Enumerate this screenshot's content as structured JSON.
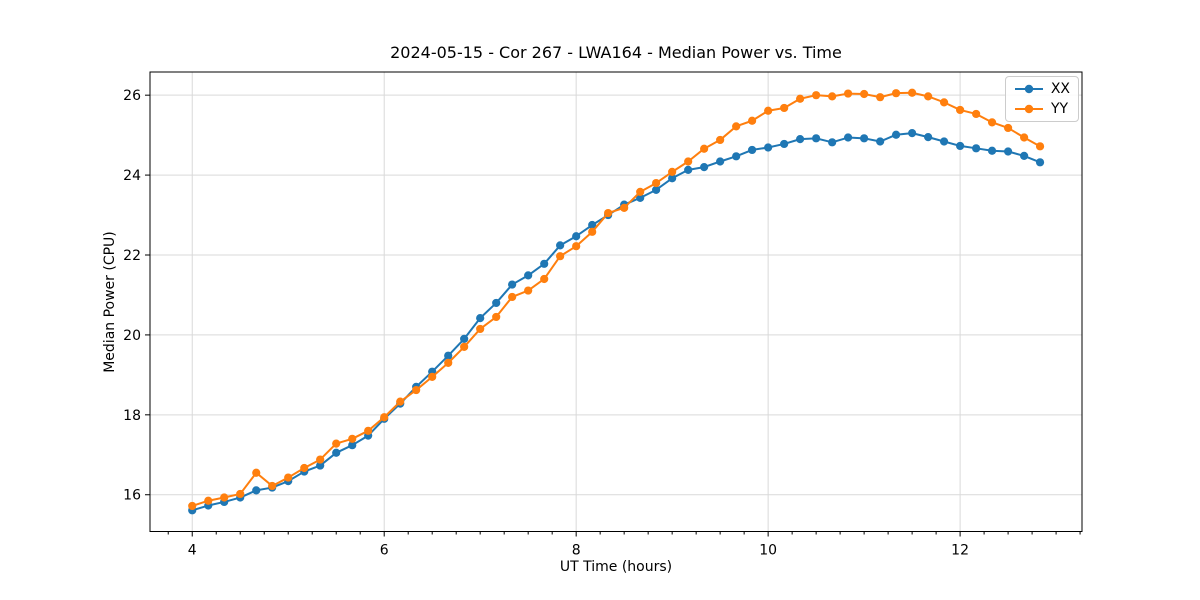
{
  "chart_data": {
    "type": "line",
    "title": "2024-05-15 - Cor 267 - LWA164 - Median Power vs. Time",
    "xlabel": "UT Time (hours)",
    "ylabel": "Median Power (CPU)",
    "xlim": [
      3.56,
      13.27
    ],
    "ylim": [
      15.08,
      26.58
    ],
    "xticks": [
      4,
      6,
      8,
      10,
      12
    ],
    "yticks": [
      16,
      18,
      20,
      22,
      24,
      26
    ],
    "x_minor_tick_step": 0.25,
    "grid": true,
    "grid_color": "#d9d9d9",
    "legend_position": "upper right",
    "x": [
      4.0,
      4.167,
      4.333,
      4.5,
      4.667,
      4.833,
      5.0,
      5.167,
      5.333,
      5.5,
      5.667,
      5.833,
      6.0,
      6.167,
      6.333,
      6.5,
      6.667,
      6.833,
      7.0,
      7.167,
      7.333,
      7.5,
      7.667,
      7.833,
      8.0,
      8.167,
      8.333,
      8.5,
      8.667,
      8.833,
      9.0,
      9.167,
      9.333,
      9.5,
      9.667,
      9.833,
      10.0,
      10.167,
      10.333,
      10.5,
      10.667,
      10.833,
      11.0,
      11.167,
      11.333,
      11.5,
      11.667,
      11.833,
      12.0,
      12.167,
      12.333,
      12.5,
      12.667,
      12.833
    ],
    "series": [
      {
        "name": "XX",
        "color": "#1f77b4",
        "values": [
          15.61,
          15.73,
          15.82,
          15.93,
          16.11,
          16.18,
          16.34,
          16.58,
          16.73,
          17.05,
          17.24,
          17.48,
          17.9,
          18.28,
          18.7,
          19.08,
          19.48,
          19.9,
          20.42,
          20.8,
          21.26,
          21.49,
          21.78,
          22.24,
          22.47,
          22.75,
          23.0,
          23.26,
          23.43,
          23.63,
          23.92,
          24.13,
          24.2,
          24.34,
          24.47,
          24.63,
          24.69,
          24.78,
          24.9,
          24.92,
          24.82,
          24.94,
          24.92,
          24.84,
          25.01,
          25.05,
          24.95,
          24.84,
          24.73,
          24.67,
          24.61,
          24.59,
          24.48,
          24.32
        ]
      },
      {
        "name": "YY",
        "color": "#ff7f0e",
        "values": [
          15.72,
          15.85,
          15.93,
          16.02,
          16.55,
          16.22,
          16.43,
          16.67,
          16.88,
          17.28,
          17.4,
          17.6,
          17.94,
          18.33,
          18.62,
          18.95,
          19.3,
          19.7,
          20.15,
          20.45,
          20.95,
          21.11,
          21.4,
          21.97,
          22.22,
          22.58,
          23.05,
          23.18,
          23.58,
          23.8,
          24.08,
          24.34,
          24.66,
          24.88,
          25.22,
          25.36,
          25.61,
          25.68,
          25.91,
          26.0,
          25.97,
          26.04,
          26.03,
          25.95,
          26.05,
          26.06,
          25.97,
          25.82,
          25.63,
          25.53,
          25.32,
          25.18,
          24.94,
          24.72
        ]
      }
    ]
  }
}
